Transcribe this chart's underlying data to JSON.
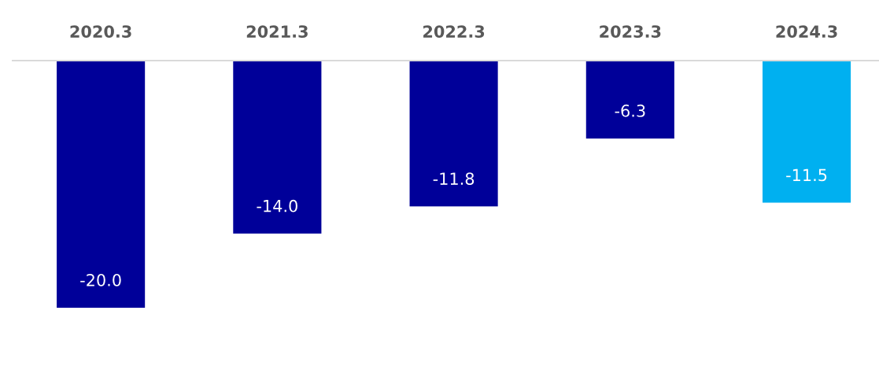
{
  "chart_data": {
    "type": "bar",
    "categories": [
      "2020.3",
      "2021.3",
      "2022.3",
      "2023.3",
      "2024.3"
    ],
    "values": [
      -20.0,
      -14.0,
      -11.8,
      -6.3,
      -11.5
    ],
    "colors": [
      "#000099",
      "#000099",
      "#000099",
      "#000099",
      "#00b0f0"
    ],
    "value_labels": [
      "-20.0",
      "-14.0",
      "-11.8",
      "-6.3",
      "-11.5"
    ],
    "grid": false,
    "legend": false
  }
}
